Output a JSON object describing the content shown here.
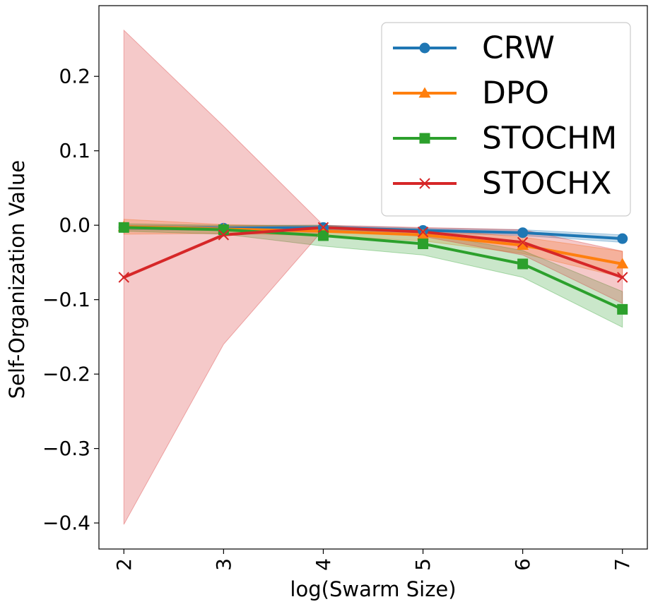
{
  "chart_data": {
    "type": "line",
    "xlabel": "log(Swarm Size)",
    "ylabel": "Self-Organization Value",
    "x": [
      2,
      3,
      4,
      5,
      6,
      7
    ],
    "xlim": [
      1.75,
      7.25
    ],
    "ylim": [
      -0.435,
      0.295
    ],
    "xticks": [
      "2",
      "3",
      "4",
      "5",
      "6",
      "7"
    ],
    "yticks": [
      {
        "value": 0.2,
        "label": "0.2"
      },
      {
        "value": 0.1,
        "label": "0.1"
      },
      {
        "value": 0.0,
        "label": "0.0"
      },
      {
        "value": -0.1,
        "label": "−0.1"
      },
      {
        "value": -0.2,
        "label": "−0.2"
      },
      {
        "value": -0.3,
        "label": "−0.3"
      },
      {
        "value": -0.4,
        "label": "−0.4"
      }
    ],
    "grid": false,
    "legend_position": "top-right",
    "series": [
      {
        "name": "CRW",
        "color": "#1f77b4",
        "marker": "circle",
        "values": [
          -0.003,
          -0.004,
          -0.003,
          -0.007,
          -0.01,
          -0.018
        ],
        "lower": [
          -0.006,
          -0.007,
          -0.006,
          -0.01,
          -0.014,
          -0.023
        ],
        "upper": [
          0.0,
          -0.001,
          0.0,
          -0.004,
          -0.006,
          -0.013
        ]
      },
      {
        "name": "DPO",
        "color": "#ff7f0e",
        "marker": "triangle",
        "values": [
          -0.002,
          -0.005,
          -0.008,
          -0.013,
          -0.027,
          -0.052
        ],
        "lower": [
          -0.012,
          -0.011,
          -0.014,
          -0.021,
          -0.038,
          -0.07
        ],
        "upper": [
          0.008,
          0.001,
          -0.002,
          -0.005,
          -0.016,
          -0.035
        ]
      },
      {
        "name": "STOCHM",
        "color": "#2ca02c",
        "marker": "square",
        "values": [
          -0.003,
          -0.006,
          -0.014,
          -0.025,
          -0.052,
          -0.113
        ],
        "lower": [
          -0.008,
          -0.012,
          -0.028,
          -0.04,
          -0.07,
          -0.137
        ],
        "upper": [
          0.002,
          0.0,
          0.0,
          -0.01,
          -0.034,
          -0.089
        ]
      },
      {
        "name": "STOCHX",
        "color": "#d62728",
        "marker": "x",
        "values": [
          -0.07,
          -0.013,
          -0.003,
          -0.009,
          -0.023,
          -0.07
        ],
        "lower": [
          -0.402,
          -0.16,
          -0.006,
          -0.015,
          -0.04,
          -0.105
        ],
        "upper": [
          0.262,
          0.133,
          0.0,
          -0.003,
          -0.006,
          -0.035
        ]
      }
    ]
  }
}
